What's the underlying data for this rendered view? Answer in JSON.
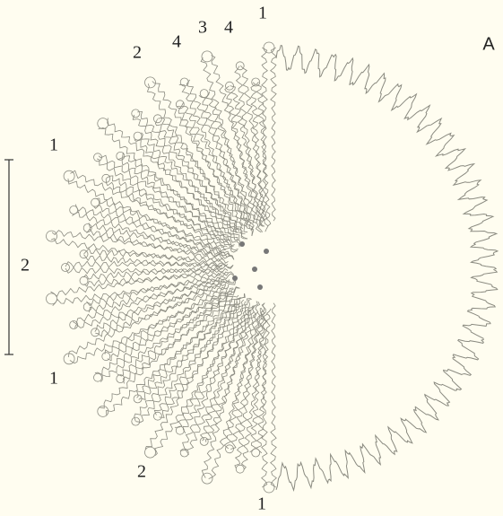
{
  "panel_label": "A",
  "septa_labels": [
    "1",
    "4",
    "3",
    "4",
    "2",
    "1",
    "2",
    "1",
    "2",
    "1"
  ]
}
